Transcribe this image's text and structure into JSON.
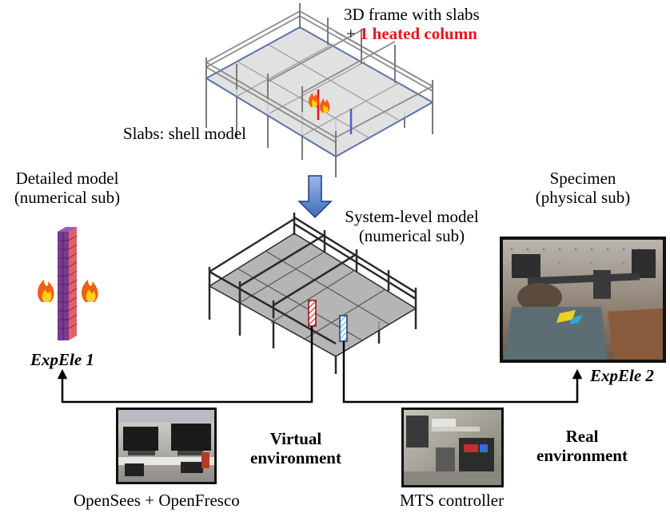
{
  "top_model": {
    "title_line1": "3D frame with slabs",
    "title_plus": "+",
    "title_highlight": "1 heated column",
    "slab_label": "Slabs: shell model"
  },
  "detailed_model": {
    "line1": "Detailed model",
    "line2": "(numerical sub)",
    "element": "ExpEle 1"
  },
  "system_model": {
    "line1": "System-level model",
    "line2": "(numerical sub)"
  },
  "specimen": {
    "line1": "Specimen",
    "line2": "(physical sub)",
    "element": "ExpEle 2"
  },
  "virtual_env": {
    "line1": "Virtual",
    "line2": "environment",
    "caption": "OpenSees + OpenFresco"
  },
  "real_env": {
    "line1": "Real",
    "line2": "environment",
    "caption": "MTS controller"
  },
  "colors": {
    "heated_highlight": "#e8141c",
    "slab_top": "#dcdcdc",
    "slab_system": "#a8a8a8",
    "detail_column": "#7a3a92",
    "arrow_fill": "#5b83c7"
  }
}
